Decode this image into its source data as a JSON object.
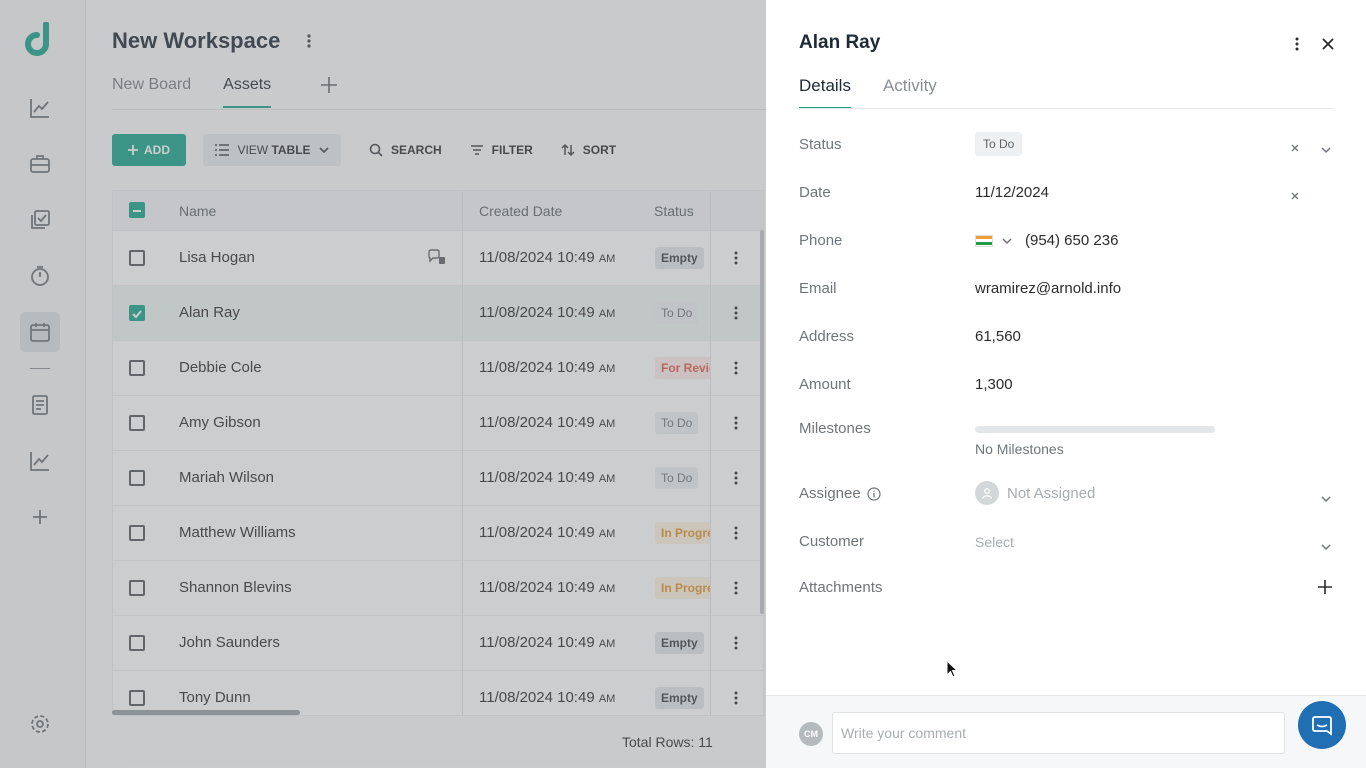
{
  "workspace": {
    "title": "New Workspace",
    "tabs": [
      {
        "label": "New Board"
      },
      {
        "label": "Assets"
      }
    ]
  },
  "toolbar": {
    "add_label": "ADD",
    "view_prefix": "VIEW",
    "view_strong": "TABLE",
    "search_label": "SEARCH",
    "filter_label": "FILTER",
    "sort_label": "SORT"
  },
  "table": {
    "headers": {
      "name": "Name",
      "created": "Created Date",
      "status": "Status"
    },
    "rows": [
      {
        "name": "Lisa Hogan",
        "date": "11/08/2024 10:49",
        "ampm": "AM",
        "status": "Empty"
      },
      {
        "name": "Alan Ray",
        "date": "11/08/2024 10:49",
        "ampm": "AM",
        "status": "To Do"
      },
      {
        "name": "Debbie Cole",
        "date": "11/08/2024 10:49",
        "ampm": "AM",
        "status": "For Review"
      },
      {
        "name": "Amy Gibson",
        "date": "11/08/2024 10:49",
        "ampm": "AM",
        "status": "To Do"
      },
      {
        "name": "Mariah Wilson",
        "date": "11/08/2024 10:49",
        "ampm": "AM",
        "status": "To Do"
      },
      {
        "name": "Matthew Williams",
        "date": "11/08/2024 10:49",
        "ampm": "AM",
        "status": "In Progress"
      },
      {
        "name": "Shannon Blevins",
        "date": "11/08/2024 10:49",
        "ampm": "AM",
        "status": "In Progress"
      },
      {
        "name": "John Saunders",
        "date": "11/08/2024 10:49",
        "ampm": "AM",
        "status": "Empty"
      },
      {
        "name": "Tony Dunn",
        "date": "11/08/2024 10:49",
        "ampm": "AM",
        "status": "Empty"
      }
    ],
    "total_label": "Total Rows: 11"
  },
  "panel": {
    "title": "Alan Ray",
    "tabs": [
      {
        "label": "Details"
      },
      {
        "label": "Activity"
      }
    ],
    "fields": {
      "status": {
        "label": "Status",
        "value": "To Do"
      },
      "date": {
        "label": "Date",
        "value": "11/12/2024"
      },
      "phone": {
        "label": "Phone",
        "value": "(954) 650 236"
      },
      "email": {
        "label": "Email",
        "value": "wramirez@arnold.info"
      },
      "address": {
        "label": "Address",
        "value": "61,560"
      },
      "amount": {
        "label": "Amount",
        "value": "1,300"
      },
      "milestones": {
        "label": "Milestones",
        "value": "No Milestones",
        "progress": 0
      },
      "assignee": {
        "label": "Assignee",
        "value": "Not Assigned"
      },
      "customer": {
        "label": "Customer",
        "value": "Select"
      },
      "attachments": {
        "label": "Attachments"
      }
    },
    "comment": {
      "avatar_initials": "CM",
      "placeholder": "Write your comment"
    }
  },
  "colors": {
    "accent": "#15a38a",
    "chat": "#1f6fb2"
  }
}
